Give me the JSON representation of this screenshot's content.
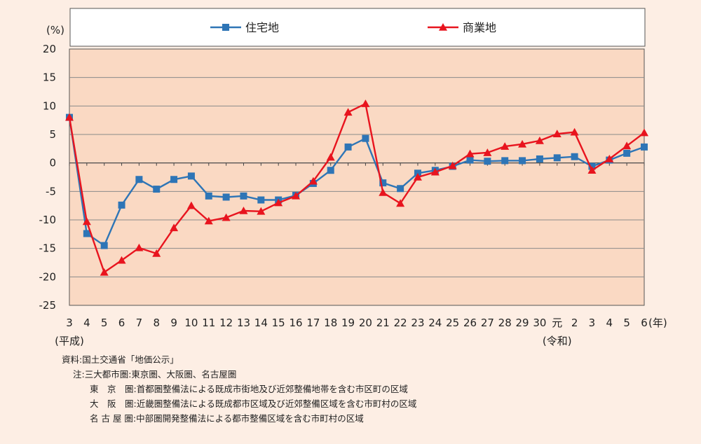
{
  "chart_data": {
    "type": "line",
    "y_unit": "(%)",
    "x_unit": "(年)",
    "era_labels": [
      {
        "text": "(平成)",
        "category_index": 0
      },
      {
        "text": "(令和)",
        "category_index": 28
      }
    ],
    "categories": [
      "3",
      "4",
      "5",
      "6",
      "7",
      "8",
      "9",
      "10",
      "11",
      "12",
      "13",
      "14",
      "15",
      "16",
      "17",
      "18",
      "19",
      "20",
      "21",
      "22",
      "23",
      "24",
      "25",
      "26",
      "27",
      "28",
      "29",
      "30",
      "元",
      "2",
      "3",
      "4",
      "5",
      "6"
    ],
    "ylim": [
      -25,
      20
    ],
    "yticks": [
      20,
      15,
      10,
      5,
      0,
      -5,
      -10,
      -15,
      -20,
      -25
    ],
    "grid": true,
    "legend_position": "top",
    "series": [
      {
        "name": "住宅地",
        "color": "#2e75b6",
        "marker": "square",
        "values": [
          8.0,
          -12.4,
          -14.5,
          -7.4,
          -2.9,
          -4.6,
          -2.9,
          -2.3,
          -5.8,
          -6.0,
          -5.8,
          -6.5,
          -6.5,
          -5.7,
          -3.6,
          -1.3,
          2.8,
          4.3,
          -3.5,
          -4.5,
          -1.8,
          -1.3,
          -0.6,
          0.5,
          0.3,
          0.4,
          0.4,
          0.7,
          0.9,
          1.1,
          -0.6,
          0.5,
          1.7,
          2.8
        ]
      },
      {
        "name": "商業地",
        "color": "#e8141e",
        "marker": "triangle",
        "values": [
          8.0,
          -10.3,
          -19.2,
          -17.1,
          -14.9,
          -15.9,
          -11.4,
          -7.5,
          -10.2,
          -9.6,
          -8.4,
          -8.5,
          -7.0,
          -5.8,
          -3.2,
          1.0,
          8.9,
          10.4,
          -5.2,
          -7.1,
          -2.5,
          -1.6,
          -0.5,
          1.6,
          1.8,
          2.9,
          3.3,
          3.9,
          5.1,
          5.4,
          -1.3,
          0.7,
          3.0,
          5.3
        ]
      }
    ]
  },
  "notes": {
    "source": "資料:国土交通省「地価公示」",
    "note": "注:三大都市圏:東京圏、大阪圏、名古屋圏",
    "tokyo": "東　京　圏:首都圏整備法による既成市街地及び近郊整備地帯を含む市区町の区域",
    "osaka": "大　阪　圏:近畿圏整備法による既成都市区域及び近郊整備区域を含む市町村の区域",
    "nagoya": "名 古 屋 圏:中部圏開発整備法による都市整備区域を含む市町村の区域"
  }
}
